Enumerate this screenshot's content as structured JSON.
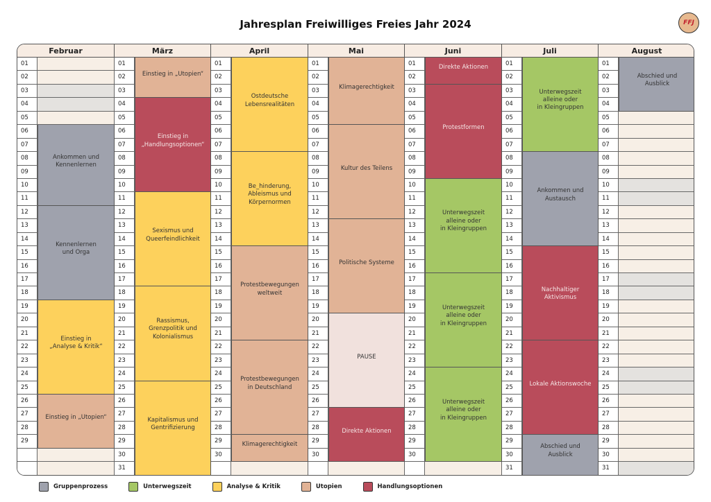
{
  "title": "Jahresplan Freiwilliges Freies Jahr 2024",
  "logo_text": "FFJ",
  "months": [
    {
      "name": "Februar",
      "days": 29,
      "blocks": [
        {
          "start": 6,
          "end": 12,
          "label": "Ankommen und\nKennenlernen",
          "cat": "grp"
        },
        {
          "start": 12,
          "end": 19,
          "label": "Kennenlernen\nund Orga",
          "cat": "grp"
        },
        {
          "start": 19,
          "end": 26,
          "label": "Einstieg in\n„Analyse & Kritik“",
          "cat": "ana"
        },
        {
          "start": 26,
          "end": 30,
          "label": "Einstieg in „Utopien“",
          "cat": "uto"
        }
      ],
      "empty": [
        {
          "day": 1,
          "tone": "light"
        },
        {
          "day": 2,
          "tone": "light"
        },
        {
          "day": 3,
          "tone": "grey"
        },
        {
          "day": 4,
          "tone": "grey"
        },
        {
          "day": 5,
          "tone": "light"
        },
        {
          "day": 30,
          "tone": "light"
        },
        {
          "day": 31,
          "tone": "light"
        }
      ]
    },
    {
      "name": "März",
      "days": 31,
      "blocks": [
        {
          "start": 1,
          "end": 4,
          "label": "Einstieg in „Utopien“",
          "cat": "uto"
        },
        {
          "start": 4,
          "end": 11,
          "label": "Einstieg in\n„Handlungsoptionen“",
          "cat": "hand"
        },
        {
          "start": 11,
          "end": 18,
          "label": "Sexismus und\nQueerfeindlichkeit",
          "cat": "ana"
        },
        {
          "start": 18,
          "end": 25,
          "label": "Rassismus,\nGrenzpolitik und\nKolonialismus",
          "cat": "ana"
        },
        {
          "start": 25,
          "end": 32,
          "label": "Kapitalismus und\nGentrifizierung",
          "cat": "ana"
        }
      ],
      "empty": []
    },
    {
      "name": "April",
      "days": 30,
      "blocks": [
        {
          "start": 1,
          "end": 8,
          "label": "Ostdeutsche\nLebensrealitäten",
          "cat": "ana"
        },
        {
          "start": 8,
          "end": 15,
          "label": "Be_hinderung,\nAbleismus und\nKörpernormen",
          "cat": "ana"
        },
        {
          "start": 15,
          "end": 22,
          "label": "Protestbewegungen\nweltweit",
          "cat": "uto"
        },
        {
          "start": 22,
          "end": 29,
          "label": "Protestbewegungen\nin Deutschland",
          "cat": "uto"
        },
        {
          "start": 29,
          "end": 31,
          "label": "Klimagerechtigkeit",
          "cat": "uto"
        }
      ],
      "empty": [
        {
          "day": 31,
          "tone": "light"
        }
      ]
    },
    {
      "name": "Mai",
      "days": 30,
      "blocks": [
        {
          "start": 1,
          "end": 6,
          "label": "Klimagerechtigkeit",
          "cat": "uto"
        },
        {
          "start": 6,
          "end": 13,
          "label": "Kultur des Teilens",
          "cat": "uto"
        },
        {
          "start": 13,
          "end": 20,
          "label": "Politische Systeme",
          "cat": "uto"
        },
        {
          "start": 20,
          "end": 27,
          "label": "PAUSE",
          "cat": "pause"
        },
        {
          "start": 27,
          "end": 31,
          "label": "Direkte Aktionen",
          "cat": "hand"
        }
      ],
      "empty": [
        {
          "day": 31,
          "tone": "light"
        }
      ]
    },
    {
      "name": "Juni",
      "days": 30,
      "blocks": [
        {
          "start": 1,
          "end": 3,
          "label": "Direkte Aktionen",
          "cat": "hand"
        },
        {
          "start": 3,
          "end": 10,
          "label": "Protestformen",
          "cat": "hand"
        },
        {
          "start": 10,
          "end": 17,
          "label": "Unterwegszeit\nalleine oder\nin Kleingruppen",
          "cat": "unt"
        },
        {
          "start": 17,
          "end": 24,
          "label": "Unterwegszeit\nalleine oder\nin Kleingruppen",
          "cat": "unt"
        },
        {
          "start": 24,
          "end": 31,
          "label": "Unterwegszeit\nalleine oder\nin Kleingruppen",
          "cat": "unt"
        }
      ],
      "empty": [
        {
          "day": 31,
          "tone": "light"
        }
      ]
    },
    {
      "name": "Juli",
      "days": 31,
      "blocks": [
        {
          "start": 1,
          "end": 8,
          "label": "Unterwegszeit\nalleine oder\nin Kleingruppen",
          "cat": "unt"
        },
        {
          "start": 8,
          "end": 15,
          "label": "Ankommen und\nAustausch",
          "cat": "grp"
        },
        {
          "start": 15,
          "end": 22,
          "label": "Nachhaltiger Aktivismus",
          "cat": "hand"
        },
        {
          "start": 22,
          "end": 29,
          "label": "Lokale Aktionswoche",
          "cat": "hand"
        },
        {
          "start": 29,
          "end": 32,
          "label": "Abschied und\nAusblick",
          "cat": "grp"
        }
      ],
      "empty": []
    },
    {
      "name": "August",
      "days": 31,
      "blocks": [
        {
          "start": 1,
          "end": 5,
          "label": "Abschied und\nAusblick",
          "cat": "grp"
        }
      ],
      "empty": [
        {
          "day": 5,
          "tone": "light"
        },
        {
          "day": 6,
          "tone": "light"
        },
        {
          "day": 7,
          "tone": "light"
        },
        {
          "day": 8,
          "tone": "light"
        },
        {
          "day": 9,
          "tone": "light"
        },
        {
          "day": 10,
          "tone": "grey"
        },
        {
          "day": 11,
          "tone": "grey"
        },
        {
          "day": 12,
          "tone": "light"
        },
        {
          "day": 13,
          "tone": "light"
        },
        {
          "day": 14,
          "tone": "light"
        },
        {
          "day": 15,
          "tone": "light"
        },
        {
          "day": 16,
          "tone": "light"
        },
        {
          "day": 17,
          "tone": "grey"
        },
        {
          "day": 18,
          "tone": "grey"
        },
        {
          "day": 19,
          "tone": "light"
        },
        {
          "day": 20,
          "tone": "light"
        },
        {
          "day": 21,
          "tone": "light"
        },
        {
          "day": 22,
          "tone": "light"
        },
        {
          "day": 23,
          "tone": "light"
        },
        {
          "day": 24,
          "tone": "grey"
        },
        {
          "day": 25,
          "tone": "grey"
        },
        {
          "day": 26,
          "tone": "light"
        },
        {
          "day": 27,
          "tone": "light"
        },
        {
          "day": 28,
          "tone": "light"
        },
        {
          "day": 29,
          "tone": "light"
        },
        {
          "day": 30,
          "tone": "light"
        },
        {
          "day": 31,
          "tone": "grey"
        }
      ]
    }
  ],
  "legend": [
    {
      "label": "Gruppenprozess",
      "color": "#9fa2ad"
    },
    {
      "label": "Unterwegszeit",
      "color": "#a5c765"
    },
    {
      "label": "Analyse & Kritik",
      "color": "#fdd15c"
    },
    {
      "label": "Utopien",
      "color": "#e1b396"
    },
    {
      "label": "Handlungsoptionen",
      "color": "#b94c5b"
    }
  ]
}
